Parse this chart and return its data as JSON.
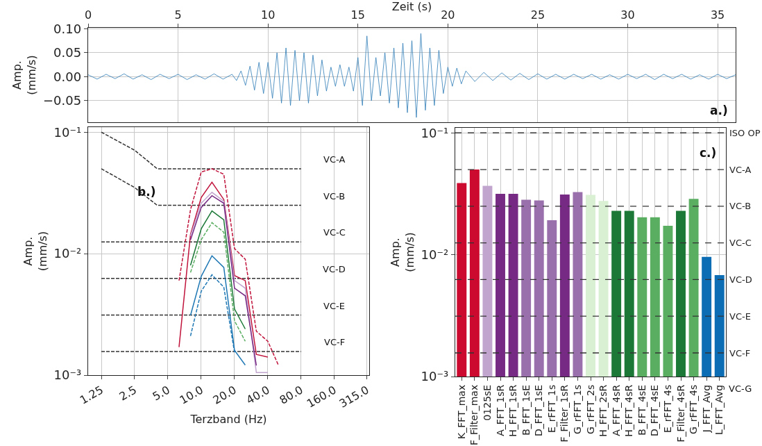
{
  "chart_data": [
    {
      "type": "line",
      "xlabel": "Zeit (s)",
      "ylabel": "Amp.\n(mm/s)",
      "xlim": [
        0,
        36
      ],
      "xticks": [
        0,
        5,
        10,
        15,
        20,
        25,
        30,
        35
      ],
      "ylim": [
        -0.095,
        0.102
      ],
      "yticks": [
        {
          "value": -0.05,
          "label": "−0.05"
        },
        {
          "value": 0,
          "label": "0.00"
        },
        {
          "value": 0.05,
          "label": "0.05"
        },
        {
          "value": 0.1,
          "label": "0.10"
        }
      ],
      "grid": true,
      "annotations": [
        "a.)"
      ],
      "x": [
        0,
        0.5,
        1,
        1.5,
        2,
        2.5,
        3,
        3.5,
        4,
        4.5,
        5,
        5.5,
        6,
        6.5,
        7,
        7.5,
        8,
        8.25,
        8.5,
        8.75,
        9,
        9.25,
        9.5,
        9.75,
        10,
        10.25,
        10.5,
        10.75,
        11,
        11.25,
        11.5,
        11.75,
        12,
        12.25,
        12.5,
        12.75,
        13,
        13.25,
        13.5,
        13.75,
        14,
        14.25,
        14.5,
        14.75,
        15,
        15.25,
        15.5,
        15.75,
        16,
        16.25,
        16.5,
        16.75,
        17,
        17.25,
        17.5,
        17.75,
        18,
        18.25,
        18.5,
        18.75,
        19,
        19.25,
        19.5,
        19.75,
        20,
        20.25,
        20.5,
        20.75,
        21,
        21.5,
        22,
        22.5,
        23,
        23.5,
        24,
        24.5,
        25,
        25.5,
        26,
        26.5,
        27,
        27.5,
        28,
        28.5,
        29,
        29.5,
        30,
        30.5,
        31,
        31.5,
        32,
        32.5,
        33,
        33.5,
        34,
        34.5,
        35,
        35.5,
        36
      ],
      "series": [
        {
          "color": "#2c7bb6",
          "values": [
            0.004,
            -0.005,
            0.005,
            -0.004,
            0.006,
            -0.005,
            0.004,
            -0.006,
            0.005,
            -0.004,
            0.005,
            -0.006,
            0.004,
            -0.005,
            0.006,
            -0.005,
            0.005,
            -0.008,
            0.012,
            -0.018,
            0.022,
            -0.028,
            0.03,
            -0.035,
            0.03,
            -0.045,
            0.05,
            -0.055,
            0.06,
            -0.06,
            0.055,
            -0.05,
            0.05,
            -0.055,
            0.045,
            -0.04,
            0.035,
            -0.03,
            0.02,
            -0.02,
            0.025,
            -0.02,
            0.02,
            -0.03,
            0.04,
            -0.06,
            0.085,
            -0.05,
            0.04,
            -0.04,
            0.05,
            -0.055,
            0.06,
            -0.065,
            0.07,
            -0.075,
            0.075,
            -0.085,
            0.09,
            -0.07,
            0.06,
            -0.06,
            0.055,
            -0.035,
            0.02,
            -0.02,
            0.018,
            -0.015,
            0.012,
            -0.01,
            0.009,
            -0.008,
            0.008,
            -0.007,
            0.007,
            -0.006,
            0.006,
            -0.005,
            0.005,
            -0.005,
            0.005,
            -0.004,
            0.005,
            -0.005,
            0.004,
            -0.005,
            0.005,
            -0.004,
            0.005,
            -0.006,
            0.005,
            -0.004,
            0.005,
            -0.005,
            0.004,
            -0.005,
            0.005,
            -0.004,
            0.004
          ]
        }
      ]
    },
    {
      "type": "line",
      "xlabel": "Terzband (Hz)",
      "ylabel": "Amp.\n(mm/s)",
      "log": "xy",
      "xlim": [
        0.95,
        330
      ],
      "xticks": [
        {
          "value": 1.25,
          "label": "1.25"
        },
        {
          "value": 2.5,
          "label": "2.5"
        },
        {
          "value": 5,
          "label": "5.0"
        },
        {
          "value": 10,
          "label": "10.0"
        },
        {
          "value": 20,
          "label": "20.0"
        },
        {
          "value": 40,
          "label": "40.0"
        },
        {
          "value": 80,
          "label": "80.0"
        },
        {
          "value": 160,
          "label": "160.0"
        },
        {
          "value": 315,
          "label": "315.0"
        }
      ],
      "ylim": [
        0.001,
        0.11
      ],
      "yticks": [
        {
          "value": 0.001,
          "label": "10⁻³"
        },
        {
          "value": 0.01,
          "label": "10⁻²"
        },
        {
          "value": 0.1,
          "label": "10⁻¹"
        }
      ],
      "grid": true,
      "annotations": [
        "b.)",
        "VC-A",
        "VC-B",
        "VC-C",
        "VC-D",
        "VC-E",
        "VC-F"
      ],
      "series": [
        {
          "color": "#333333",
          "line_style": "dashed",
          "x": [
            1.25,
            2.5,
            4,
            80
          ],
          "values": [
            0.1,
            0.071,
            0.05,
            0.05
          ]
        },
        {
          "color": "#333333",
          "line_style": "dashed",
          "x": [
            1.25,
            2.5,
            4,
            80
          ],
          "values": [
            0.05,
            0.035,
            0.025,
            0.025
          ]
        },
        {
          "color": "#333333",
          "line_style": "dashed",
          "x": [
            1.25,
            80
          ],
          "values": [
            0.0125,
            0.0125
          ]
        },
        {
          "color": "#333333",
          "line_style": "dashed",
          "x": [
            1.25,
            80
          ],
          "values": [
            0.00625,
            0.00625
          ]
        },
        {
          "color": "#333333",
          "line_style": "dashed",
          "x": [
            1.25,
            80
          ],
          "values": [
            0.003125,
            0.003125
          ]
        },
        {
          "color": "#333333",
          "line_style": "dashed",
          "x": [
            1.25,
            80
          ],
          "values": [
            0.0015625,
            0.0015625
          ]
        },
        {
          "color": "#c0143c",
          "line_style": "dashed",
          "x": [
            6.3,
            8,
            10,
            12.5,
            16,
            20,
            25,
            31.5,
            40,
            50
          ],
          "values": [
            0.006,
            0.023,
            0.047,
            0.05,
            0.045,
            0.011,
            0.009,
            0.0023,
            0.0019,
            0.0012
          ]
        },
        {
          "color": "#c0143c",
          "line_style": "solid",
          "x": [
            6.3,
            8,
            10,
            12.5,
            16,
            20,
            25,
            31.5,
            40
          ],
          "values": [
            0.0017,
            0.0144,
            0.029,
            0.0387,
            0.0279,
            0.0066,
            0.006,
            0.00148,
            0.00141
          ]
        },
        {
          "color": "#c2a5cf",
          "line_style": "solid",
          "x": [
            8,
            10,
            12.5,
            16,
            20,
            25,
            31.5,
            40
          ],
          "values": [
            0.014,
            0.026,
            0.032,
            0.027,
            0.006,
            0.0052,
            0.00105,
            0.00105
          ]
        },
        {
          "color": "#762a83",
          "line_style": "solid",
          "x": [
            8,
            10,
            12.5,
            16,
            20,
            25,
            31.5
          ],
          "values": [
            0.013,
            0.024,
            0.03,
            0.026,
            0.0052,
            0.0045,
            0.0012
          ]
        },
        {
          "color": "#1b7837",
          "line_style": "solid",
          "x": [
            8,
            10,
            12.5,
            16,
            20,
            25
          ],
          "values": [
            0.008,
            0.016,
            0.0225,
            0.019,
            0.0035,
            0.0024
          ]
        },
        {
          "color": "#5aae61",
          "line_style": "dashed",
          "x": [
            8,
            10,
            12.5,
            16,
            20,
            25
          ],
          "values": [
            0.007,
            0.013,
            0.018,
            0.015,
            0.0028,
            0.0019
          ]
        },
        {
          "color": "#1f78b4",
          "line_style": "solid",
          "x": [
            8,
            10,
            12.5,
            16,
            20,
            25
          ],
          "values": [
            0.0031,
            0.0065,
            0.0096,
            0.0077,
            0.0016,
            0.00121
          ]
        },
        {
          "color": "#1f78b4",
          "line_style": "dashed",
          "x": [
            8,
            10,
            12.5,
            16,
            20
          ],
          "values": [
            0.0021,
            0.0049,
            0.0067,
            0.0053,
            0.00154
          ]
        }
      ]
    },
    {
      "type": "bar",
      "ylabel": "Amp.\n(mm/s)",
      "log": true,
      "ylim": [
        0.001,
        0.11
      ],
      "yticks": [
        {
          "value": 0.001,
          "label": "10⁻³"
        },
        {
          "value": 0.01,
          "label": "10⁻²"
        },
        {
          "value": 0.1,
          "label": "10⁻¹"
        }
      ],
      "grid": true,
      "categories": [
        "K_FFT_max",
        "F_Filter_max",
        "0125sE",
        "A_FFT_1sR",
        "H_FFT_1sR",
        "B_FFT_1sE",
        "D_FFT_1sE",
        "E_rFFT_1s",
        "F_Filter_1sR",
        "G_rFFT_1s",
        "G_rFFT_2s",
        "H_FFT_2sR",
        "A_FFT_4sR",
        "H_FFT_4sR",
        "B_FFT_4sE",
        "D_FFT_4sE",
        "E_rFFT_4s",
        "F_Filter_4sR",
        "G_rFFT_4s",
        "J_FFT_Avg",
        "L_FFT_Avg"
      ],
      "values": [
        0.0387,
        0.05,
        0.0367,
        0.0316,
        0.0316,
        0.0283,
        0.0279,
        0.0192,
        0.0312,
        0.0327,
        0.031,
        0.0276,
        0.0229,
        0.0229,
        0.0203,
        0.0203,
        0.0173,
        0.0229,
        0.0287,
        0.0096,
        0.0068
      ],
      "colors": [
        "#cc0a2f",
        "#cc0a2f",
        "#c2a5cf",
        "#762a83",
        "#762a83",
        "#9970ab",
        "#9970ab",
        "#9970ab",
        "#762a83",
        "#9970ab",
        "#d9f0d3",
        "#d9f0d3",
        "#1b7837",
        "#1b7837",
        "#5aae61",
        "#5aae61",
        "#5aae61",
        "#1b7837",
        "#5aae61",
        "#0c6db4",
        "#0c6db4"
      ],
      "ref_lines": [
        {
          "axis": "y",
          "value": 0.1,
          "label": "ISO OP",
          "color": "#333333",
          "line_style": "dashed"
        },
        {
          "axis": "y",
          "value": 0.05,
          "label": "VC-A",
          "color": "#333333",
          "line_style": "dashed"
        },
        {
          "axis": "y",
          "value": 0.025,
          "label": "VC-B",
          "color": "#333333",
          "line_style": "dashed"
        },
        {
          "axis": "y",
          "value": 0.0125,
          "label": "VC-C",
          "color": "#333333",
          "line_style": "dashed"
        },
        {
          "axis": "y",
          "value": 0.00625,
          "label": "VC-D",
          "color": "#333333",
          "line_style": "dashed"
        },
        {
          "axis": "y",
          "value": 0.003125,
          "label": "VC-E",
          "color": "#333333",
          "line_style": "dashed"
        },
        {
          "axis": "y",
          "value": 0.0015625,
          "label": "VC-F",
          "color": "#333333",
          "line_style": "dashed"
        }
      ],
      "annotations": [
        "c.)",
        "VC-G"
      ]
    }
  ]
}
